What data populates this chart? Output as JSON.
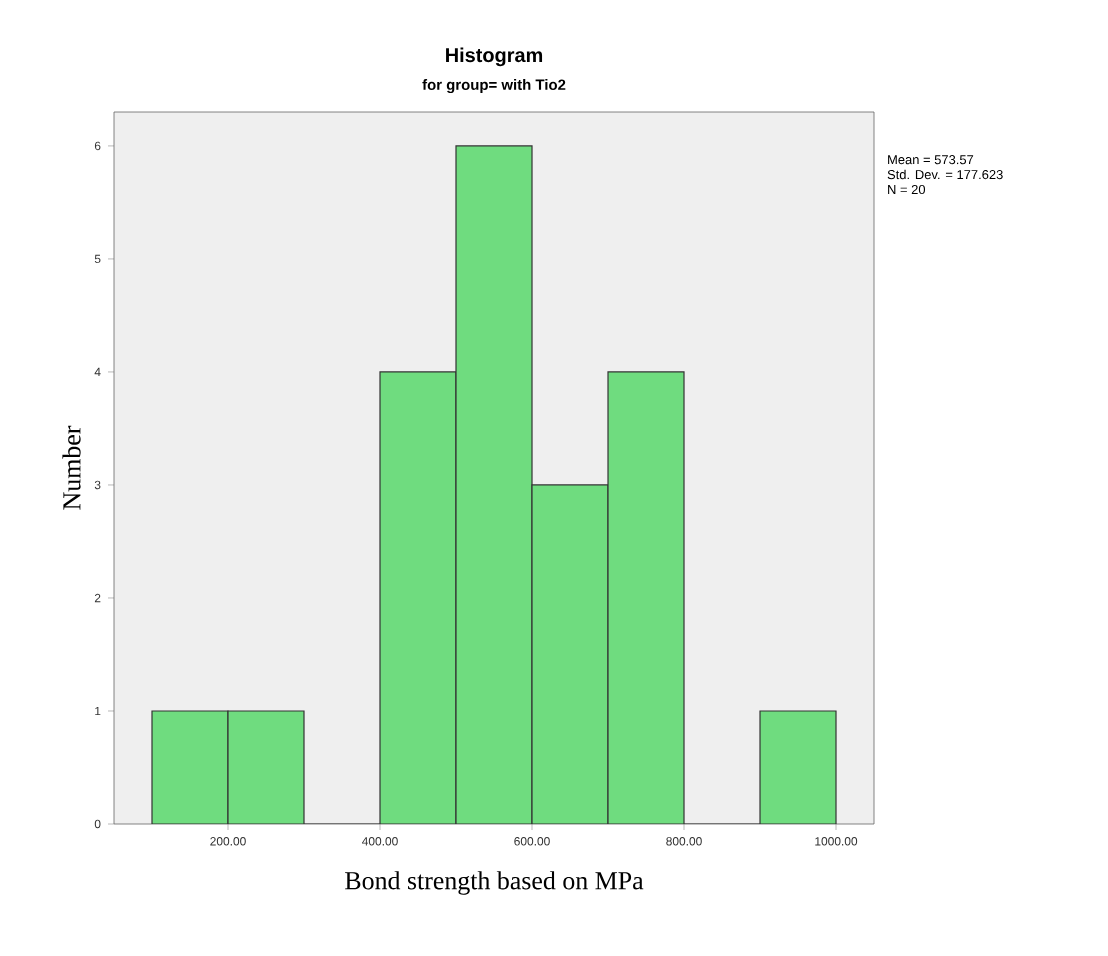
{
  "chart_data": {
    "type": "histogram",
    "title": "Histogram",
    "subtitle": "for group= with Tio2",
    "xlabel": "Bond strength based on MPa",
    "ylabel": "Number",
    "bins": [
      100,
      200,
      300,
      400,
      500,
      600,
      700,
      800,
      900,
      1000
    ],
    "values": [
      1,
      1,
      0,
      4,
      6,
      3,
      4,
      0,
      1
    ],
    "color": "#6fdc7f",
    "xlim": [
      50,
      1050
    ],
    "ylim": [
      0,
      6.3
    ],
    "xticks": [
      {
        "value": 200,
        "label": "200.00"
      },
      {
        "value": 400,
        "label": "400.00"
      },
      {
        "value": 600,
        "label": "600.00"
      },
      {
        "value": 800,
        "label": "800.00"
      },
      {
        "value": 1000,
        "label": "1000.00"
      }
    ],
    "yticks": [
      0,
      1,
      2,
      3,
      4,
      5,
      6
    ],
    "annotations": [
      "Mean = 573.57",
      "Std. Dev. = 177.623",
      "N = 20"
    ]
  }
}
